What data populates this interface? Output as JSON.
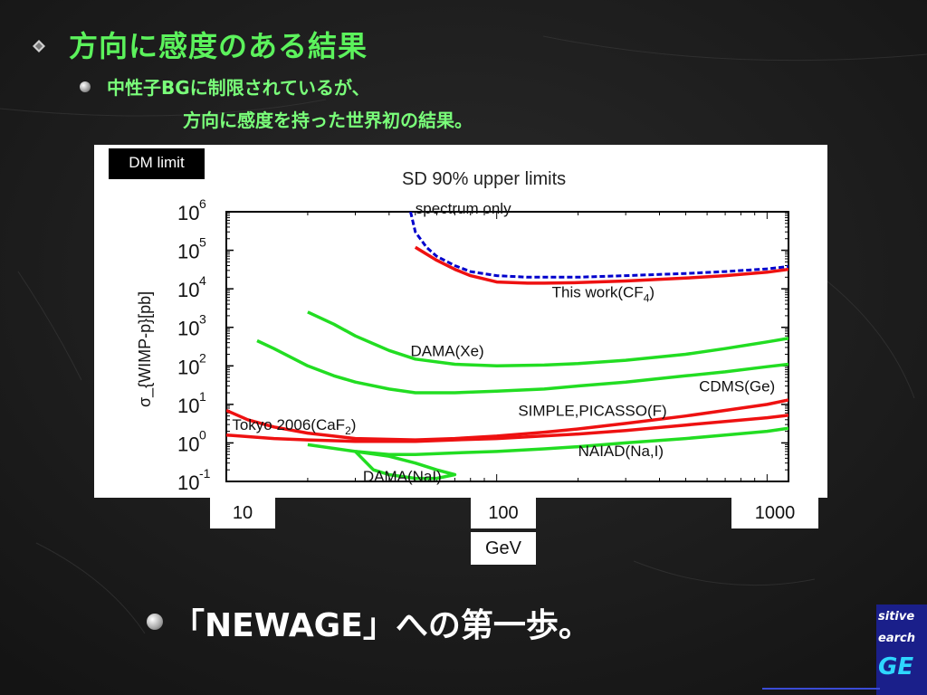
{
  "slide": {
    "title": "方向に感度のある結果",
    "sub_line1": "中性子BGに制限されているが、",
    "sub_line2": "方向に感度を持った世界初の結果。",
    "bottom_text": "「NEWAGE」への第一歩。",
    "logo_lines": [
      "sitive",
      "earch",
      "GE"
    ]
  },
  "chart_data": {
    "type": "line",
    "title": "SD  90% upper limits",
    "corner_label": "DM limit",
    "ylabel": "σ_{WIMP-p}[pb]",
    "xlabel": "GeV",
    "x_scale": "log",
    "y_scale": "log",
    "xlim": [
      10,
      1200
    ],
    "ylim": [
      0.1,
      1000000
    ],
    "x_ticks": [
      "10",
      "100",
      "1000"
    ],
    "y_ticks": [
      {
        "base": "10",
        "exp": "6"
      },
      {
        "base": "10",
        "exp": "5"
      },
      {
        "base": "10",
        "exp": "4"
      },
      {
        "base": "10",
        "exp": "3"
      },
      {
        "base": "10",
        "exp": "2"
      },
      {
        "base": "10",
        "exp": "1"
      },
      {
        "base": "10",
        "exp": "0"
      },
      {
        "base": "10",
        "exp": "-1"
      }
    ],
    "series": [
      {
        "name": "spectrum only",
        "color": "#0000cc",
        "style": "dashed",
        "x": [
          48,
          50,
          55,
          60,
          70,
          80,
          100,
          130,
          150,
          200,
          300,
          500,
          700,
          1000,
          1200
        ],
        "y": [
          1000000,
          300000,
          120000,
          70000,
          40000,
          28000,
          22000,
          20000,
          20000,
          20000,
          22000,
          25000,
          28000,
          33000,
          38000
        ]
      },
      {
        "name": "This work(CF4)",
        "color": "#ee1111",
        "style": "solid",
        "x": [
          50,
          55,
          60,
          70,
          80,
          100,
          130,
          150,
          200,
          300,
          500,
          700,
          1000,
          1200
        ],
        "y": [
          120000,
          80000,
          55000,
          32000,
          22000,
          15000,
          14000,
          14000,
          14500,
          16000,
          19000,
          22000,
          27000,
          32000
        ]
      },
      {
        "name": "DAMA(Xe)",
        "color": "#22dd22",
        "style": "solid",
        "x": [
          20,
          25,
          30,
          40,
          50,
          70,
          100,
          150,
          200,
          300,
          500,
          700,
          1000,
          1200
        ],
        "y": [
          2500,
          1200,
          600,
          250,
          150,
          110,
          100,
          105,
          115,
          140,
          200,
          280,
          420,
          520
        ]
      },
      {
        "name": "CDMS(Ge)",
        "color": "#22dd22",
        "style": "solid",
        "x": [
          13,
          15,
          20,
          25,
          30,
          40,
          50,
          70,
          100,
          150,
          200,
          300,
          500,
          700,
          1000,
          1200
        ],
        "y": [
          450,
          280,
          100,
          55,
          38,
          25,
          20,
          20,
          22,
          25,
          30,
          38,
          55,
          70,
          95,
          110
        ]
      },
      {
        "name": "SIMPLE,PICASSO(F)",
        "color": "#ee1111",
        "style": "solid",
        "x": [
          10,
          12,
          15,
          20,
          30,
          50,
          70,
          100,
          150,
          200,
          300,
          500,
          700,
          1000,
          1200
        ],
        "y": [
          7,
          4,
          2.6,
          1.8,
          1.3,
          1.2,
          1.3,
          1.5,
          1.9,
          2.3,
          3.2,
          5,
          7,
          10,
          13
        ]
      },
      {
        "name": "Tokyo 2006(CaF2)",
        "color": "#ee1111",
        "style": "solid",
        "x": [
          10,
          15,
          20,
          30,
          50,
          70,
          100,
          200,
          300,
          500,
          700,
          1000,
          1200
        ],
        "y": [
          1.6,
          1.3,
          1.2,
          1.1,
          1.1,
          1.2,
          1.3,
          1.7,
          2.1,
          2.9,
          3.6,
          4.5,
          5.2
        ]
      },
      {
        "name": "NAIAD(Na,I)",
        "color": "#22dd22",
        "style": "solid",
        "x": [
          20,
          30,
          40,
          50,
          70,
          100,
          150,
          200,
          300,
          500,
          700,
          1000,
          1200
        ],
        "y": [
          0.9,
          0.6,
          0.5,
          0.5,
          0.55,
          0.6,
          0.7,
          0.8,
          1.0,
          1.3,
          1.6,
          2.0,
          2.4
        ]
      },
      {
        "name": "DAMA(NaI)",
        "color": "#22dd22",
        "style": "solid",
        "x": [
          30,
          40,
          50,
          60,
          70,
          60,
          50,
          40,
          35,
          30
        ],
        "y": [
          0.6,
          0.45,
          0.3,
          0.2,
          0.15,
          0.12,
          0.12,
          0.15,
          0.2,
          0.6
        ]
      }
    ],
    "annotations": [
      {
        "text": "spectrum only",
        "x": 50,
        "y": 900000
      },
      {
        "text": "This work(CF",
        "sub": "4",
        "tail": ")",
        "x": 160,
        "y": 6000
      },
      {
        "text": "DAMA(Xe)",
        "x": 48,
        "y": 180
      },
      {
        "text": "CDMS(Ge)",
        "x": 560,
        "y": 22
      },
      {
        "text": "SIMPLE,PICASSO(F)",
        "x": 120,
        "y": 5
      },
      {
        "text": "Tokyo 2006(CaF",
        "sub": "2",
        "tail": ")",
        "x": 10.5,
        "y": 2.2
      },
      {
        "text": "NAIAD(Na,I)",
        "x": 200,
        "y": 0.45
      },
      {
        "text": "DAMA(NaI)",
        "x": 32,
        "y": 0.1
      }
    ]
  }
}
